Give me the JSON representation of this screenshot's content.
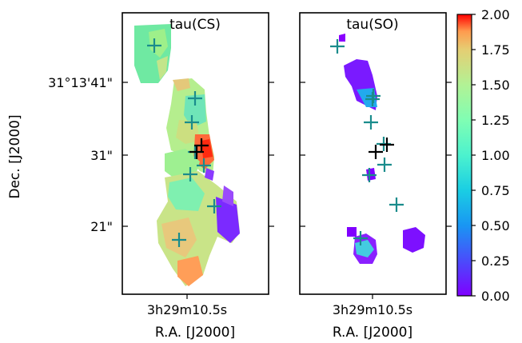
{
  "chart_data": [
    {
      "type": "heatmap",
      "title": "tau(CS)",
      "xlabel": "R.A. [J2000]",
      "ylabel": "Dec. [J2000]",
      "x_ticks": [
        "3h29m10.5s"
      ],
      "y_ticks": [
        "31°13'41\"",
        "31\"",
        "21\""
      ],
      "markers": {
        "teal": 8,
        "black": 2
      }
    },
    {
      "type": "heatmap",
      "title": "tau(SO)",
      "xlabel": "R.A. [J2000]",
      "x_ticks": [
        "3h29m10.5s"
      ],
      "markers": {
        "teal": 9,
        "black": 2
      }
    }
  ],
  "colorbar": {
    "colormap": "rainbow",
    "min": 0.0,
    "max": 2.0,
    "ticks": [
      "2.00",
      "1.75",
      "1.50",
      "1.25",
      "1.00",
      "0.75",
      "0.50",
      "0.25",
      "0.00"
    ],
    "colors": [
      "#7f00ff",
      "#2adddd",
      "#d4dd80",
      "#ff0000"
    ]
  },
  "colors": {
    "marker_teal": "#1a8c8c",
    "marker_black": "#000000"
  }
}
